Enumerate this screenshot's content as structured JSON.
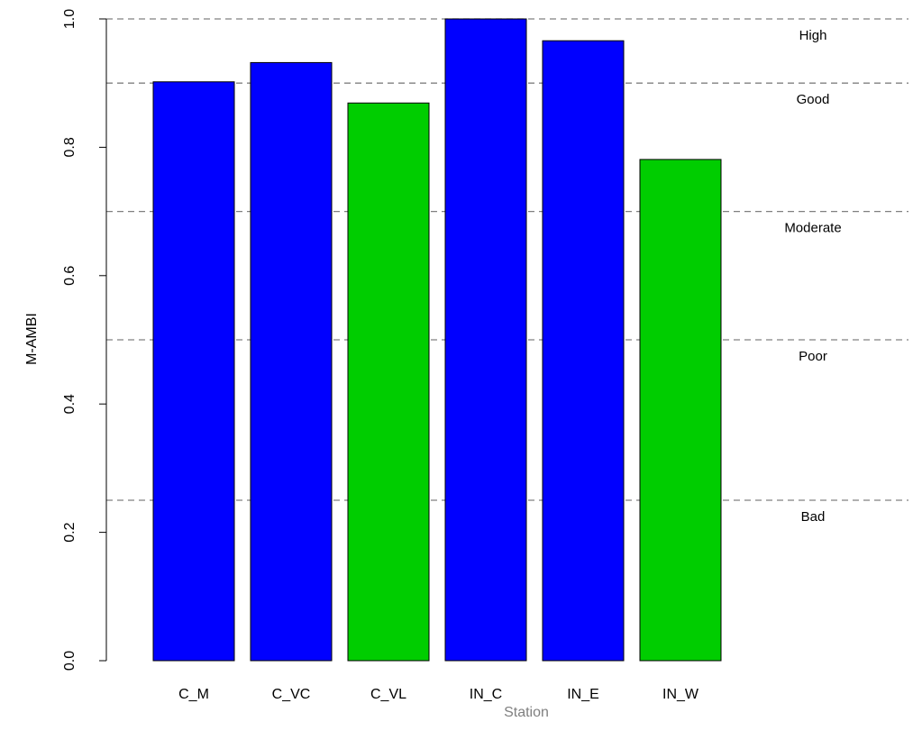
{
  "chart_data": {
    "type": "bar",
    "title": "",
    "xlabel": "Station",
    "ylabel": "M-AMBI",
    "ylim": [
      0,
      1
    ],
    "yticks": [
      "0.0",
      "0.2",
      "0.4",
      "0.6",
      "0.8",
      "1.0"
    ],
    "categories": [
      "C_M",
      "C_VC",
      "C_VL",
      "IN_C",
      "IN_E",
      "IN_W"
    ],
    "values": [
      0.902,
      0.932,
      0.869,
      1.0,
      0.966,
      0.781
    ],
    "bar_colors": [
      "#0000ff",
      "#0000ff",
      "#00cd00",
      "#0000ff",
      "#0000ff",
      "#00cd00"
    ],
    "reference_lines": [
      {
        "y": 1.0,
        "label": "High"
      },
      {
        "y": 0.9,
        "label": "Good"
      },
      {
        "y": 0.7,
        "label": "Moderate"
      },
      {
        "y": 0.5,
        "label": "Poor"
      },
      {
        "y": 0.25,
        "label": "Bad"
      }
    ],
    "grid": false,
    "reference_line_color": "#808080",
    "xlabel_color": "#808080"
  }
}
